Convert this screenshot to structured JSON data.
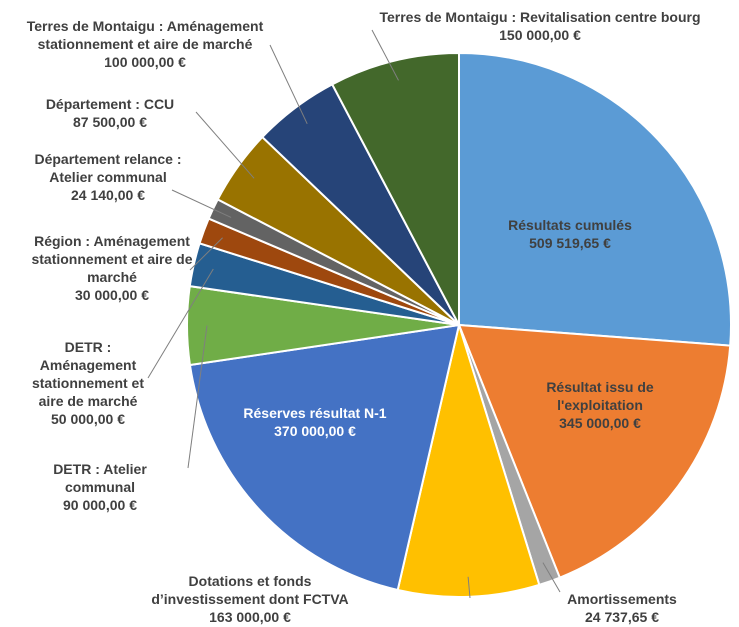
{
  "chart_data": {
    "type": "pie",
    "categories": [
      "Résultats cumulés",
      "Résultat issu de l'exploitation",
      "Amortissements",
      "Dotations et fonds d’investissement dont FCTVA",
      "Réserves résultat N-1",
      "DETR : Atelier communal",
      "DETR : Aménagement stationnement et aire de marché",
      "Région : Aménagement stationnement et aire de marché",
      "Département relance : Atelier communal",
      "Département : CCU",
      "Terres de Montaigu : Aménagement stationnement et aire de marché",
      "Terres de Montaigu : Revitalisation centre bourg"
    ],
    "values": [
      509519.65,
      345000,
      24737.65,
      163000,
      370000,
      90000,
      50000,
      30000,
      24140,
      87500,
      100000,
      150000
    ],
    "value_labels": [
      "509 519,65 €",
      "345 000,00 €",
      "24 737,65 €",
      "163 000,00 €",
      "370 000,00 €",
      "90 000,00 €",
      "50 000,00 €",
      "30 000,00 €",
      "24 140,00 €",
      "87 500,00 €",
      "100 000,00 €",
      "150 000,00 €"
    ],
    "colors": [
      "#5b9bd5",
      "#ed7d31",
      "#a5a5a5",
      "#ffc000",
      "#4472c4",
      "#70ad47",
      "#255e91",
      "#9e480e",
      "#636363",
      "#997300",
      "#264478",
      "#43682b"
    ]
  }
}
